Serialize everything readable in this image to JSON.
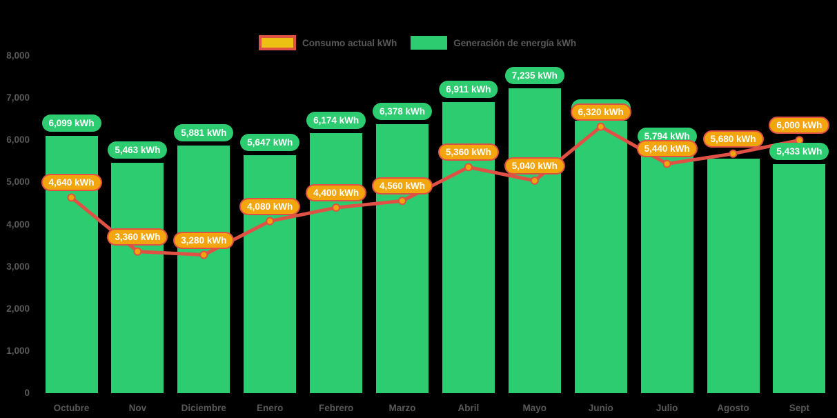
{
  "legend": {
    "consumo_label": "Consumo actual kWh",
    "generacion_label": "Generación de energía kWh"
  },
  "colors": {
    "background": "#000000",
    "bar": "#2ecc71",
    "bar_label_bg": "#2ecc71",
    "line": "#e05145",
    "marker_fill": "#f2a50c",
    "cons_label_bg": "#f2a50c",
    "cons_label_border": "#e05145",
    "legend_consumo_fill": "#ecc113",
    "axis_text": "#595959",
    "value_text": "#ffffff"
  },
  "chart_data": {
    "type": "bar",
    "title": "",
    "xlabel": "",
    "ylabel": "",
    "categories": [
      "Octubre",
      "Nov",
      "Diciembre",
      "Enero",
      "Febrero",
      "Marzo",
      "Abril",
      "Mayo",
      "Junio",
      "Julio",
      "Agosto",
      "Sept"
    ],
    "series": [
      {
        "name": "Consumo actual kWh",
        "type": "line",
        "values": [
          4640,
          3360,
          3280,
          4080,
          4400,
          4560,
          5360,
          5040,
          6320,
          5440,
          5680,
          6000
        ],
        "labels": [
          "4,640 kWh",
          "3,360 kWh",
          "3,280 kWh",
          "4,080 kWh",
          "4,400 kWh",
          "4,560 kWh",
          "5,360 kWh",
          "5,040 kWh",
          "6,320 kWh",
          "5,440 kWh",
          "5,680 kWh",
          "6,000 kWh"
        ]
      },
      {
        "name": "Generación de energía kWh",
        "type": "bar",
        "values": [
          6099,
          5463,
          5881,
          5647,
          6174,
          6378,
          6911,
          7235,
          6455,
          5794,
          5560,
          5433
        ],
        "labels": [
          "6,099 kWh",
          "5,463 kWh",
          "5,881 kWh",
          "5,647 kWh",
          "6,174 kWh",
          "6,378 kWh",
          "6,911 kWh",
          "7,235 kWh",
          "6,455 kWh",
          "5,794 kWh",
          null,
          "5,433 kWh"
        ]
      }
    ],
    "ylim": [
      0,
      8000
    ],
    "ytick_labels": [
      "0",
      "1,000",
      "2,000",
      "3,000",
      "4,000",
      "5,000",
      "6,000",
      "7,000",
      "8,000"
    ],
    "grid": false,
    "legend_position": "top"
  }
}
